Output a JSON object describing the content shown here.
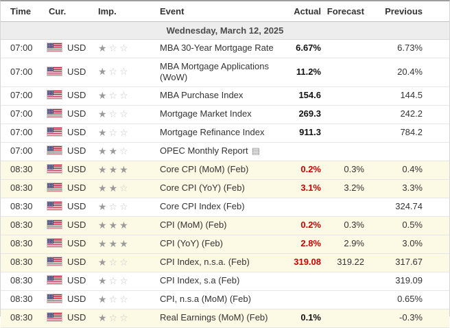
{
  "colors": {
    "actual_red": "#cc0000",
    "highlight_row": "#fcf9e4",
    "star_filled": "#9a9a9a",
    "star_outline": "#c9c9c9",
    "date_row_bg": "#ededed"
  },
  "icons": {
    "star_filled": "★",
    "star_outline": "☆",
    "report": "▤",
    "flag": "us-flag"
  },
  "table": {
    "columns": {
      "time": "Time",
      "currency": "Cur.",
      "importance": "Imp.",
      "event": "Event",
      "actual": "Actual",
      "forecast": "Forecast",
      "previous": "Previous"
    },
    "date_header": "Wednesday, March 12, 2025",
    "currency": "USD",
    "rows": [
      {
        "time": "07:00",
        "importance": 1,
        "event": "MBA 30-Year Mortgage Rate",
        "actual": "6.67%",
        "forecast": "",
        "previous": "6.73%",
        "actual_style": "bold",
        "highlight": false,
        "report_icon": false
      },
      {
        "time": "07:00",
        "importance": 1,
        "event": "MBA Mortgage Applications (WoW)",
        "actual": "11.2%",
        "forecast": "",
        "previous": "20.4%",
        "actual_style": "bold",
        "highlight": false,
        "report_icon": false
      },
      {
        "time": "07:00",
        "importance": 1,
        "event": "MBA Purchase Index",
        "actual": "154.6",
        "forecast": "",
        "previous": "144.5",
        "actual_style": "bold",
        "highlight": false,
        "report_icon": false
      },
      {
        "time": "07:00",
        "importance": 1,
        "event": "Mortgage Market Index",
        "actual": "269.3",
        "forecast": "",
        "previous": "242.2",
        "actual_style": "bold",
        "highlight": false,
        "report_icon": false
      },
      {
        "time": "07:00",
        "importance": 1,
        "event": "Mortgage Refinance Index",
        "actual": "911.3",
        "forecast": "",
        "previous": "784.2",
        "actual_style": "bold",
        "highlight": false,
        "report_icon": false
      },
      {
        "time": "07:00",
        "importance": 2,
        "event": "OPEC Monthly Report",
        "actual": "",
        "forecast": "",
        "previous": "",
        "actual_style": "",
        "highlight": false,
        "report_icon": true
      },
      {
        "time": "08:30",
        "importance": 3,
        "event": "Core CPI (MoM) (Feb)",
        "actual": "0.2%",
        "forecast": "0.3%",
        "previous": "0.4%",
        "actual_style": "red",
        "highlight": true,
        "report_icon": false
      },
      {
        "time": "08:30",
        "importance": 2,
        "event": "Core CPI (YoY) (Feb)",
        "actual": "3.1%",
        "forecast": "3.2%",
        "previous": "3.3%",
        "actual_style": "red",
        "highlight": true,
        "report_icon": false
      },
      {
        "time": "08:30",
        "importance": 1,
        "event": "Core CPI Index (Feb)",
        "actual": "",
        "forecast": "",
        "previous": "324.74",
        "actual_style": "",
        "highlight": false,
        "report_icon": false
      },
      {
        "time": "08:30",
        "importance": 3,
        "event": "CPI (MoM) (Feb)",
        "actual": "0.2%",
        "forecast": "0.3%",
        "previous": "0.5%",
        "actual_style": "red",
        "highlight": true,
        "report_icon": false
      },
      {
        "time": "08:30",
        "importance": 3,
        "event": "CPI (YoY) (Feb)",
        "actual": "2.8%",
        "forecast": "2.9%",
        "previous": "3.0%",
        "actual_style": "red",
        "highlight": true,
        "report_icon": false
      },
      {
        "time": "08:30",
        "importance": 1,
        "event": "CPI Index, n.s.a. (Feb)",
        "actual": "319.08",
        "forecast": "319.22",
        "previous": "317.67",
        "actual_style": "red",
        "highlight": true,
        "report_icon": false
      },
      {
        "time": "08:30",
        "importance": 1,
        "event": "CPI Index, s.a (Feb)",
        "actual": "",
        "forecast": "",
        "previous": "319.09",
        "actual_style": "",
        "highlight": false,
        "report_icon": false
      },
      {
        "time": "08:30",
        "importance": 1,
        "event": "CPI, n.s.a (MoM) (Feb)",
        "actual": "",
        "forecast": "",
        "previous": "0.65%",
        "actual_style": "",
        "highlight": false,
        "report_icon": false
      },
      {
        "time": "08:30",
        "importance": 1,
        "event": "Real Earnings (MoM) (Feb)",
        "actual": "0.1%",
        "forecast": "",
        "previous": "-0.3%",
        "actual_style": "bold",
        "highlight": true,
        "report_icon": false
      }
    ]
  }
}
